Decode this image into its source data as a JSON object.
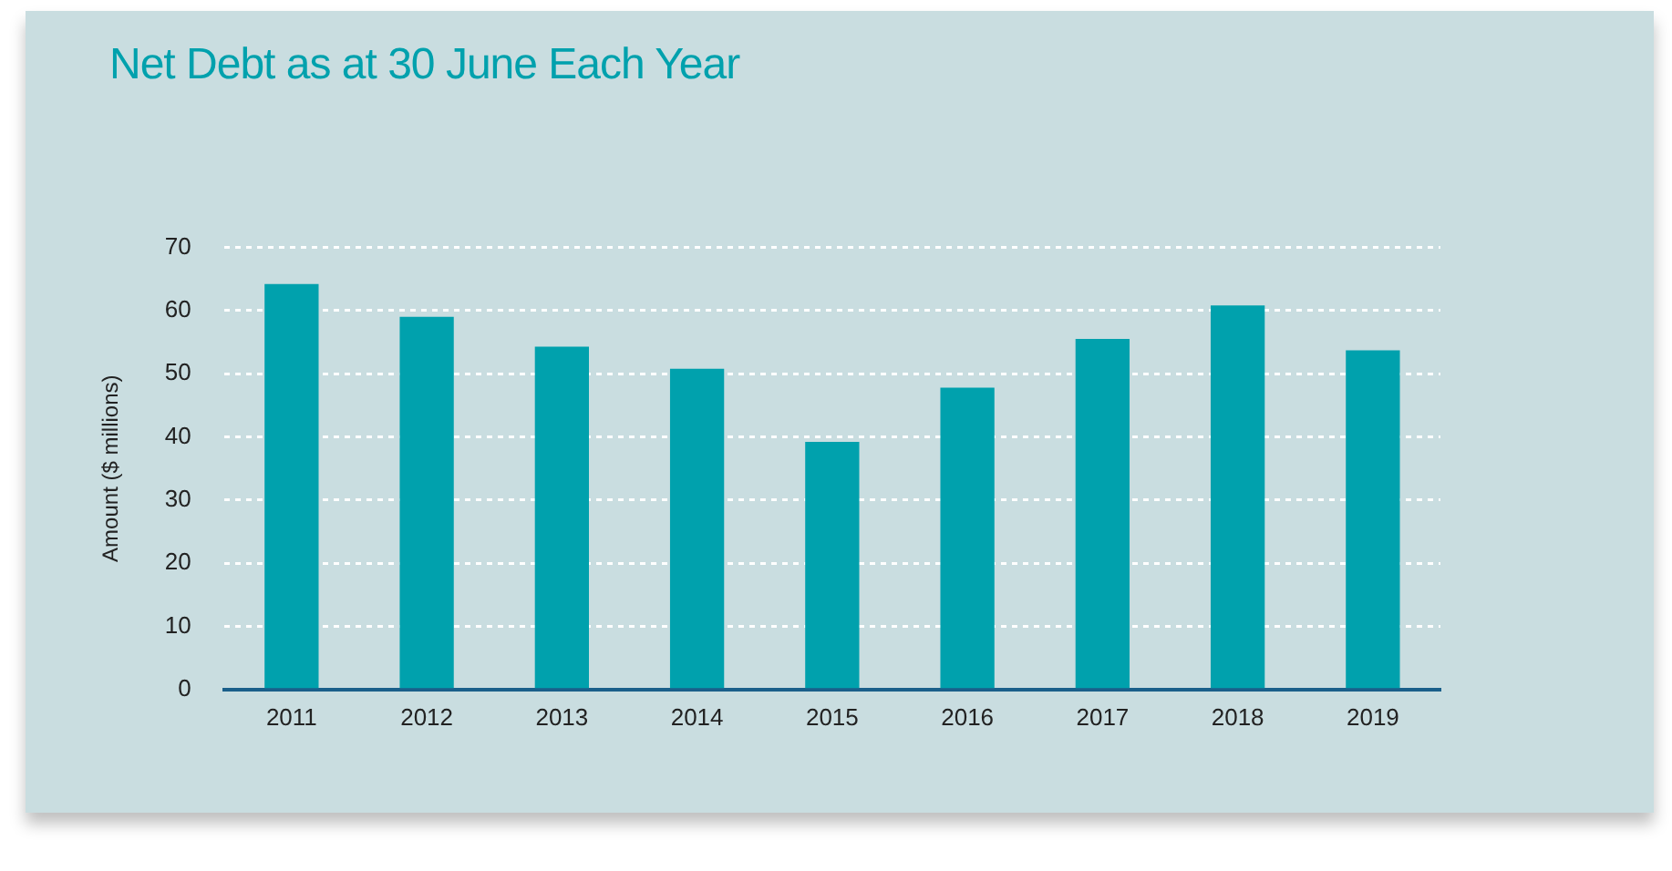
{
  "chart_data": {
    "type": "bar",
    "title": "Net Debt as at 30 June Each Year",
    "ylabel": "Amount ($ millions)",
    "categories": [
      "2011",
      "2012",
      "2013",
      "2014",
      "2015",
      "2016",
      "2017",
      "2018",
      "2019"
    ],
    "values": [
      64.2,
      59.0,
      54.3,
      50.8,
      39.2,
      47.8,
      55.5,
      60.8,
      53.7
    ],
    "color": "#00a1ad",
    "ylim": [
      0,
      70
    ],
    "yticks": [
      0,
      10,
      20,
      30,
      40,
      50,
      60,
      70
    ],
    "grid": "y",
    "legend": false
  }
}
